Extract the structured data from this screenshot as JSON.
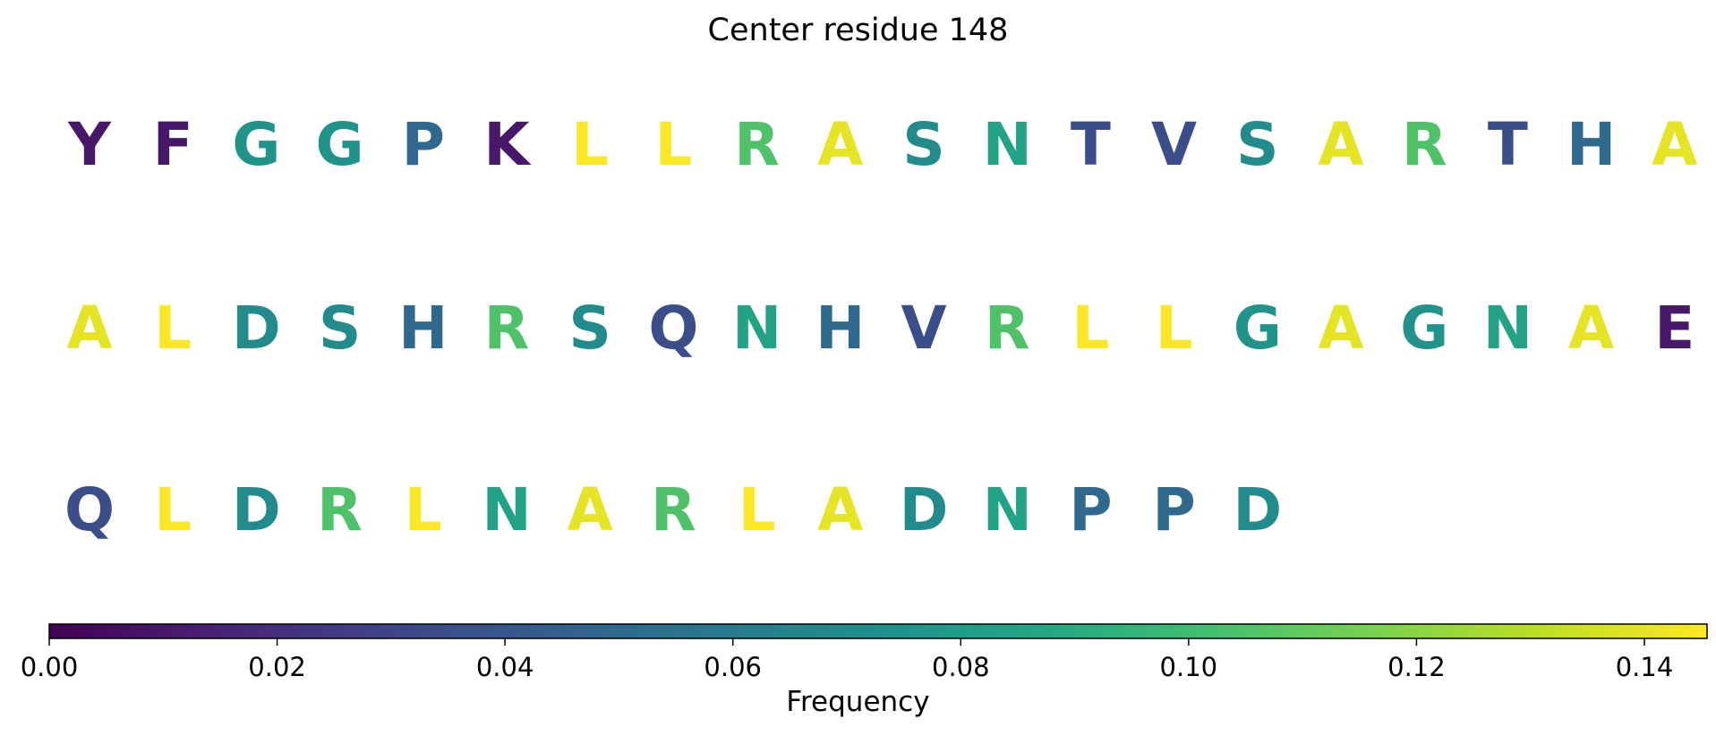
{
  "chart_data": {
    "type": "table",
    "title": "Center residue 148",
    "colorbar": {
      "label": "Frequency",
      "range": [
        0.0,
        0.1455
      ],
      "colormap": "viridis",
      "ticks": [
        "0.00",
        "0.02",
        "0.04",
        "0.06",
        "0.08",
        "0.10",
        "0.12",
        "0.14"
      ],
      "tick_values": [
        0.0,
        0.02,
        0.04,
        0.06,
        0.08,
        0.1,
        0.12,
        0.14
      ]
    },
    "columns_per_row": 20,
    "residues": [
      {
        "letter": "Y",
        "value": 0.01
      },
      {
        "letter": "F",
        "value": 0.01
      },
      {
        "letter": "G",
        "value": 0.075
      },
      {
        "letter": "G",
        "value": 0.075
      },
      {
        "letter": "P",
        "value": 0.05
      },
      {
        "letter": "K",
        "value": 0.01
      },
      {
        "letter": "L",
        "value": 0.145
      },
      {
        "letter": "L",
        "value": 0.145
      },
      {
        "letter": "R",
        "value": 0.105
      },
      {
        "letter": "A",
        "value": 0.14
      },
      {
        "letter": "S",
        "value": 0.07
      },
      {
        "letter": "N",
        "value": 0.085
      },
      {
        "letter": "T",
        "value": 0.035
      },
      {
        "letter": "V",
        "value": 0.035
      },
      {
        "letter": "S",
        "value": 0.07
      },
      {
        "letter": "A",
        "value": 0.14
      },
      {
        "letter": "R",
        "value": 0.105
      },
      {
        "letter": "T",
        "value": 0.035
      },
      {
        "letter": "H",
        "value": 0.05
      },
      {
        "letter": "A",
        "value": 0.14
      },
      {
        "letter": "A",
        "value": 0.14
      },
      {
        "letter": "L",
        "value": 0.145
      },
      {
        "letter": "D",
        "value": 0.07
      },
      {
        "letter": "S",
        "value": 0.07
      },
      {
        "letter": "H",
        "value": 0.05
      },
      {
        "letter": "R",
        "value": 0.105
      },
      {
        "letter": "S",
        "value": 0.07
      },
      {
        "letter": "Q",
        "value": 0.035
      },
      {
        "letter": "N",
        "value": 0.085
      },
      {
        "letter": "H",
        "value": 0.05
      },
      {
        "letter": "V",
        "value": 0.035
      },
      {
        "letter": "R",
        "value": 0.105
      },
      {
        "letter": "L",
        "value": 0.145
      },
      {
        "letter": "L",
        "value": 0.145
      },
      {
        "letter": "G",
        "value": 0.075
      },
      {
        "letter": "A",
        "value": 0.14
      },
      {
        "letter": "G",
        "value": 0.075
      },
      {
        "letter": "N",
        "value": 0.085
      },
      {
        "letter": "A",
        "value": 0.14
      },
      {
        "letter": "E",
        "value": 0.01
      },
      {
        "letter": "Q",
        "value": 0.035
      },
      {
        "letter": "L",
        "value": 0.145
      },
      {
        "letter": "D",
        "value": 0.07
      },
      {
        "letter": "R",
        "value": 0.105
      },
      {
        "letter": "L",
        "value": 0.145
      },
      {
        "letter": "N",
        "value": 0.085
      },
      {
        "letter": "A",
        "value": 0.14
      },
      {
        "letter": "R",
        "value": 0.105
      },
      {
        "letter": "L",
        "value": 0.145
      },
      {
        "letter": "A",
        "value": 0.14
      },
      {
        "letter": "D",
        "value": 0.07
      },
      {
        "letter": "N",
        "value": 0.085
      },
      {
        "letter": "P",
        "value": 0.05
      },
      {
        "letter": "P",
        "value": 0.05
      },
      {
        "letter": "D",
        "value": 0.07
      }
    ]
  }
}
